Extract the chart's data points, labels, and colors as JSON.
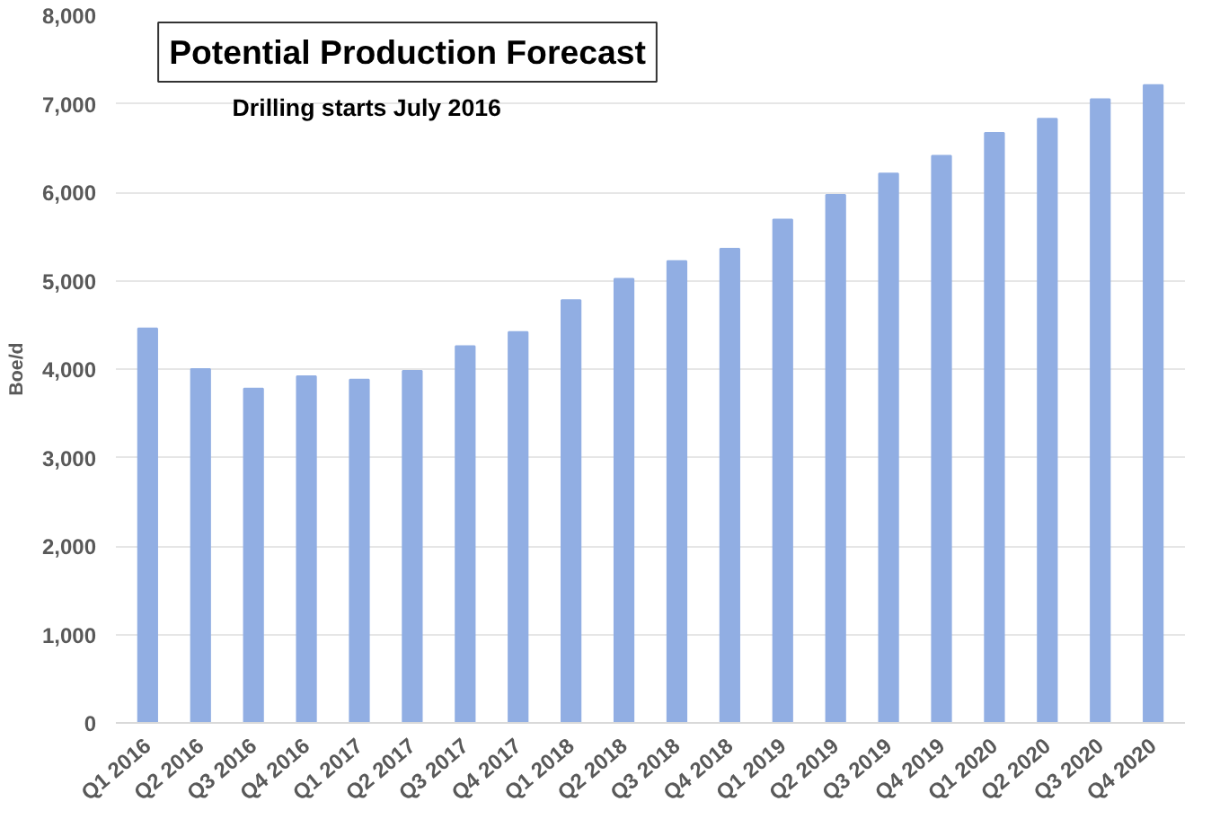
{
  "chart_data": {
    "type": "bar",
    "title": "Potential Production Forecast",
    "subtitle": "Drilling starts July 2016",
    "ylabel": "Boe/d",
    "categories": [
      "Q1 2016",
      "Q2 2016",
      "Q3 2016",
      "Q4 2016",
      "Q1 2017",
      "Q2 2017",
      "Q3 2017",
      "Q4 2017",
      "Q1 2018",
      "Q2 2018",
      "Q3 2018",
      "Q4 2018",
      "Q1 2019",
      "Q2 2019",
      "Q3 2019",
      "Q4 2019",
      "Q1 2020",
      "Q2 2020",
      "Q3 2020",
      "Q4 2020"
    ],
    "values": [
      4460,
      4000,
      3780,
      3920,
      3880,
      3980,
      4260,
      4420,
      4780,
      5020,
      5220,
      5360,
      5690,
      5970,
      6210,
      6410,
      6670,
      6830,
      7050,
      7210
    ],
    "color": "#91aee3",
    "ylim": [
      0,
      8000
    ],
    "yticks": [
      {
        "value": 0,
        "label": "0"
      },
      {
        "value": 1000,
        "label": "1,000"
      },
      {
        "value": 2000,
        "label": "2,000"
      },
      {
        "value": 3000,
        "label": "3,000"
      },
      {
        "value": 4000,
        "label": "4,000"
      },
      {
        "value": 5000,
        "label": "5,000"
      },
      {
        "value": 6000,
        "label": "6,000"
      },
      {
        "value": 7000,
        "label": "7,000"
      },
      {
        "value": 8000,
        "label": "8,000"
      }
    ],
    "grid": "y"
  }
}
